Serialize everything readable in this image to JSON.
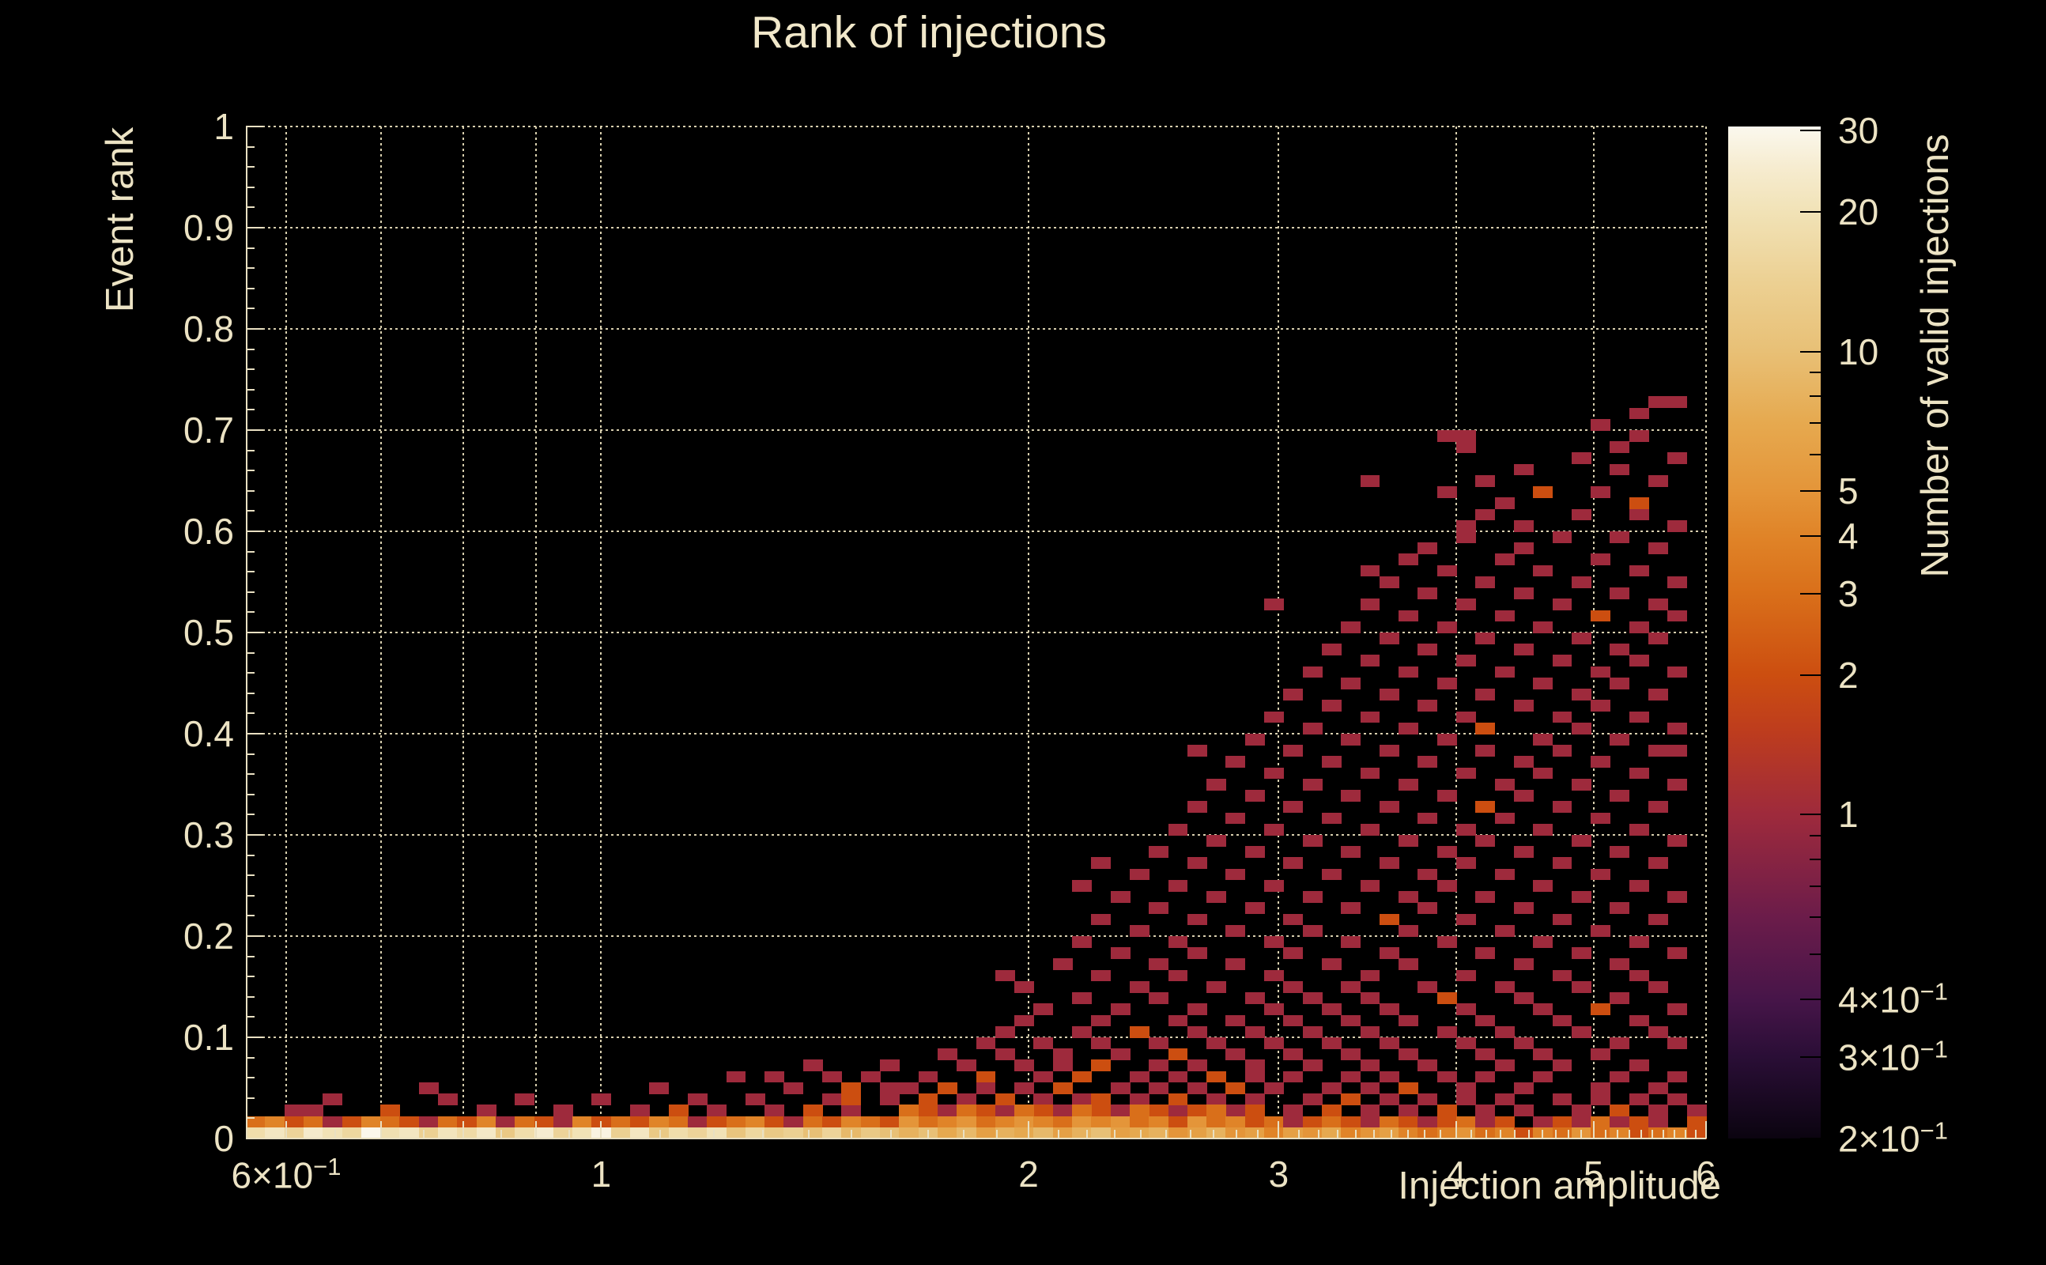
{
  "title": "Rank of injections",
  "colors": {
    "background": "#000000",
    "text": "#ece3c4",
    "grid": "#d8cfae",
    "axis": "#e9e0c2",
    "colorbar_tick": "#000000"
  },
  "axes": {
    "x": {
      "title": "Injection amplitude",
      "scale": "log",
      "range": [
        0.562,
        6
      ],
      "major_ticks": [
        {
          "v": 0.6,
          "label": "6×10",
          "sup": "−1"
        },
        {
          "v": 0.7
        },
        {
          "v": 0.8
        },
        {
          "v": 0.9
        },
        {
          "v": 1,
          "label": "1"
        },
        {
          "v": 2,
          "label": "2"
        },
        {
          "v": 3,
          "label": "3"
        },
        {
          "v": 4,
          "label": "4"
        },
        {
          "v": 5,
          "label": "5"
        },
        {
          "v": 6,
          "label": "6"
        }
      ],
      "minor_ticks": [
        0.65,
        0.75,
        0.85,
        0.95,
        1.1,
        1.2,
        1.3,
        1.4,
        1.5,
        1.6,
        1.7,
        1.8,
        1.9,
        2.1,
        2.2,
        2.3,
        2.4,
        2.5,
        2.6,
        2.7,
        2.8,
        2.9,
        3.1,
        3.2,
        3.3,
        3.4,
        3.5,
        3.6,
        3.7,
        3.8,
        3.9,
        4.1,
        4.2,
        4.3,
        4.4,
        4.5,
        4.6,
        4.7,
        4.8,
        4.9,
        5.1,
        5.2,
        5.3,
        5.4,
        5.5,
        5.6,
        5.7,
        5.8,
        5.9
      ]
    },
    "y": {
      "title": "Event rank",
      "scale": "linear",
      "range": [
        0,
        1
      ],
      "major_ticks": [
        {
          "v": 0,
          "label": "0"
        },
        {
          "v": 0.1,
          "label": "0.1"
        },
        {
          "v": 0.2,
          "label": "0.2"
        },
        {
          "v": 0.3,
          "label": "0.3"
        },
        {
          "v": 0.4,
          "label": "0.4"
        },
        {
          "v": 0.5,
          "label": "0.5"
        },
        {
          "v": 0.6,
          "label": "0.6"
        },
        {
          "v": 0.7,
          "label": "0.7"
        },
        {
          "v": 0.8,
          "label": "0.8"
        },
        {
          "v": 0.9,
          "label": "0.9"
        },
        {
          "v": 1,
          "label": "1"
        }
      ],
      "minor_step": 0.02
    },
    "z": {
      "title": "Number of valid injections",
      "scale": "log",
      "range": [
        0.2,
        30.6
      ],
      "major_ticks": [
        {
          "v": 30,
          "label": "30"
        },
        {
          "v": 20,
          "label": "20"
        },
        {
          "v": 10,
          "label": "10"
        },
        {
          "v": 5,
          "label": "5"
        },
        {
          "v": 4,
          "label": "4"
        },
        {
          "v": 3,
          "label": "3"
        },
        {
          "v": 2,
          "label": "2"
        },
        {
          "v": 1,
          "label": "1"
        },
        {
          "v": 0.4,
          "label": "4×10",
          "sup": "−1"
        },
        {
          "v": 0.3,
          "label": "3×10",
          "sup": "−1"
        },
        {
          "v": 0.2,
          "label": "2×10",
          "sup": "−1"
        }
      ],
      "minor_ticks": [
        9,
        8,
        7,
        6,
        0.9,
        0.8,
        0.7,
        0.6,
        0.5
      ]
    }
  },
  "chart_data": {
    "type": "heatmap",
    "title": "Rank of injections",
    "xlabel": "Injection amplitude",
    "ylabel": "Event rank",
    "zlabel": "Number of valid injections",
    "x_scale": "log",
    "x_range": [
      0.562,
      6
    ],
    "y_range": [
      0,
      1
    ],
    "z_scale": "log",
    "z_range": [
      0.2,
      30.6
    ],
    "grid": {
      "cols": 76,
      "rows": 90
    },
    "legend_position": "right-colorbar",
    "palette_stops": [
      [
        0.2,
        "#0b0410"
      ],
      [
        0.3,
        "#2a0e36"
      ],
      [
        0.4,
        "#471549"
      ],
      [
        0.6,
        "#6b1c4a"
      ],
      [
        1,
        "#9e2a3c"
      ],
      [
        1.5,
        "#bd3c1e"
      ],
      [
        2,
        "#cc4e10"
      ],
      [
        3,
        "#d96f1a"
      ],
      [
        4,
        "#e08428"
      ],
      [
        5,
        "#e49539"
      ],
      [
        7,
        "#e6a94f"
      ],
      [
        10,
        "#e8c076"
      ],
      [
        14,
        "#ecd092"
      ],
      [
        20,
        "#f1e2b6"
      ],
      [
        25,
        "#f6ecd0"
      ],
      [
        30.6,
        "#fbf8ee"
      ]
    ],
    "row0_counts": [
      18,
      22,
      15,
      24,
      20,
      16,
      30,
      19,
      22,
      14,
      21,
      17,
      23,
      12,
      18,
      25,
      15,
      20,
      28,
      14,
      22,
      12,
      18,
      15,
      20,
      11,
      16,
      12,
      14,
      10,
      15,
      9,
      12,
      10,
      8,
      10,
      7,
      9,
      6,
      8,
      7,
      9,
      6,
      8,
      10,
      6,
      7,
      8,
      5,
      6,
      8,
      5,
      6,
      4,
      6,
      5,
      7,
      4,
      5,
      6,
      4,
      3,
      4,
      5,
      3,
      4,
      2,
      4,
      3,
      5,
      3,
      4,
      2,
      3,
      4,
      2
    ],
    "row1_counts": [
      3,
      4,
      2,
      3,
      1,
      2,
      4,
      3,
      2,
      1,
      3,
      2,
      4,
      1,
      3,
      2,
      1,
      4,
      2,
      3,
      2,
      4,
      3,
      1,
      2,
      3,
      4,
      2,
      1,
      3,
      2,
      4,
      3,
      2,
      5,
      3,
      4,
      5,
      3,
      4,
      5,
      4,
      3,
      5,
      4,
      5,
      3,
      4,
      2,
      5,
      3,
      4,
      2,
      3,
      1,
      2,
      3,
      2,
      1,
      3,
      2,
      1,
      2,
      3,
      1,
      2,
      0,
      1,
      2,
      1,
      3,
      1,
      2,
      1,
      0,
      2
    ],
    "scatter_count1_rows": {
      "2": [
        2,
        3,
        12,
        16,
        20,
        24,
        27,
        31,
        36,
        39,
        42,
        45,
        48,
        51,
        54,
        58,
        60,
        64,
        66,
        69,
        73,
        75
      ],
      "3": [
        4,
        10,
        14,
        18,
        23,
        26,
        30,
        33,
        37,
        41,
        43,
        46,
        50,
        52,
        55,
        59,
        61,
        63,
        65,
        68,
        70,
        72,
        74
      ],
      "4": [
        9,
        21,
        28,
        33,
        34,
        38,
        40,
        45,
        47,
        49,
        53,
        56,
        58,
        63,
        66,
        70,
        73
      ],
      "5": [
        25,
        27,
        30,
        32,
        35,
        41,
        46,
        48,
        52,
        54,
        57,
        59,
        62,
        64,
        67,
        71,
        74
      ],
      "6": [
        29,
        33,
        37,
        40,
        42,
        47,
        49,
        52,
        55,
        58,
        61,
        65,
        68,
        72
      ],
      "7": [
        36,
        39,
        42,
        45,
        51,
        54,
        57,
        60,
        64,
        67,
        70
      ],
      "8": [
        38,
        41,
        44,
        47,
        50,
        53,
        56,
        59,
        63,
        66,
        71,
        74
      ],
      "9": [
        39,
        43,
        49,
        52,
        55,
        58,
        62,
        65,
        69,
        73
      ],
      "10": [
        40,
        44,
        48,
        51,
        54,
        57,
        60,
        64,
        68,
        72
      ],
      "11": [
        41,
        45,
        49,
        53,
        56,
        59,
        63,
        67,
        74
      ],
      "12": [
        43,
        47,
        52,
        55,
        58,
        66,
        71
      ],
      "13": [
        40,
        46,
        50,
        54,
        57,
        61,
        65,
        69,
        73
      ],
      "14": [
        39,
        44,
        48,
        53,
        58,
        63,
        68,
        72
      ],
      "15": [
        42,
        47,
        51,
        56,
        60,
        66,
        71
      ],
      "16": [
        45,
        49,
        54,
        59,
        64,
        69,
        74
      ],
      "17": [
        43,
        48,
        53,
        57,
        62,
        67,
        72
      ],
      "18": [
        46,
        51,
        55,
        60,
        65,
        70
      ],
      "19": [
        44,
        49,
        54,
        63,
        68,
        73
      ],
      "20": [
        47,
        52,
        57,
        61,
        66,
        71
      ],
      "21": [
        45,
        50,
        55,
        60,
        64,
        69,
        74
      ],
      "22": [
        43,
        48,
        53,
        58,
        62,
        67,
        72
      ],
      "23": [
        46,
        51,
        56,
        61,
        65,
        70
      ],
      "24": [
        44,
        49,
        54,
        59,
        63,
        68,
        73
      ],
      "25": [
        47,
        52,
        57,
        62,
        66,
        71
      ],
      "26": [
        50,
        55,
        60,
        64,
        69,
        74
      ],
      "27": [
        48,
        53,
        58,
        63,
        67,
        72
      ],
      "28": [
        51,
        56,
        61,
        65,
        70
      ],
      "29": [
        49,
        54,
        59,
        68,
        73
      ],
      "30": [
        52,
        57,
        62,
        66,
        71
      ],
      "31": [
        50,
        55,
        60,
        65,
        69,
        74
      ],
      "32": [
        53,
        58,
        63,
        67,
        72
      ],
      "33": [
        51,
        56,
        61,
        66,
        70
      ],
      "34": [
        49,
        54,
        59,
        64,
        68,
        73,
        74
      ],
      "35": [
        52,
        57,
        62,
        67,
        71
      ],
      "36": [
        55,
        60,
        69,
        74
      ],
      "37": [
        53,
        58,
        63,
        68,
        72
      ],
      "38": [
        56,
        61,
        66,
        70
      ],
      "39": [
        54,
        59,
        64,
        69,
        73
      ],
      "40": [
        57,
        62,
        67,
        71
      ],
      "41": [
        55,
        60,
        65,
        70,
        74
      ],
      "42": [
        58,
        63,
        68,
        72
      ],
      "43": [
        56,
        61,
        66,
        71
      ],
      "44": [
        59,
        64,
        69,
        73
      ],
      "45": [
        57,
        62,
        67,
        72
      ],
      "46": [
        60,
        65,
        74
      ],
      "47": [
        53,
        58,
        63,
        68,
        73
      ],
      "48": [
        61,
        66,
        71
      ],
      "49": [
        59,
        64,
        69,
        74
      ],
      "50": [
        58,
        62,
        67,
        72
      ],
      "51": [
        60,
        65,
        70
      ],
      "52": [
        61,
        66,
        73
      ],
      "53": [
        63,
        68,
        71
      ],
      "54": [
        63,
        66,
        74
      ],
      "55": [
        64,
        69,
        72
      ],
      "56": [
        65
      ],
      "57": [
        62,
        70
      ],
      "58": [
        58,
        64,
        73
      ],
      "59": [
        66,
        71
      ],
      "60": [
        69,
        74
      ],
      "61": [
        63,
        71
      ],
      "62": [
        62,
        63,
        72
      ],
      "63": [
        70
      ],
      "64": [
        72
      ],
      "65": [
        73,
        74
      ]
    },
    "scatter_count2": [
      [
        7,
        2
      ],
      [
        22,
        2
      ],
      [
        29,
        2
      ],
      [
        35,
        2
      ],
      [
        38,
        2
      ],
      [
        41,
        2
      ],
      [
        44,
        2
      ],
      [
        47,
        2
      ],
      [
        49,
        2
      ],
      [
        52,
        2
      ],
      [
        56,
        2
      ],
      [
        62,
        2
      ],
      [
        71,
        2
      ],
      [
        31,
        3
      ],
      [
        35,
        3
      ],
      [
        39,
        3
      ],
      [
        44,
        3
      ],
      [
        48,
        3
      ],
      [
        57,
        3
      ],
      [
        31,
        4
      ],
      [
        36,
        4
      ],
      [
        42,
        4
      ],
      [
        51,
        4
      ],
      [
        60,
        4
      ],
      [
        38,
        5
      ],
      [
        43,
        5
      ],
      [
        50,
        5
      ],
      [
        44,
        6
      ],
      [
        48,
        7
      ],
      [
        46,
        9
      ],
      [
        70,
        11
      ],
      [
        62,
        12
      ],
      [
        59,
        19
      ],
      [
        64,
        29
      ],
      [
        64,
        36
      ],
      [
        70,
        46
      ],
      [
        72,
        56
      ],
      [
        67,
        57
      ]
    ],
    "scatter_count3": [
      [
        34,
        2
      ],
      [
        37,
        2
      ],
      [
        40,
        2
      ],
      [
        43,
        2
      ],
      [
        46,
        2
      ],
      [
        50,
        2
      ]
    ]
  }
}
